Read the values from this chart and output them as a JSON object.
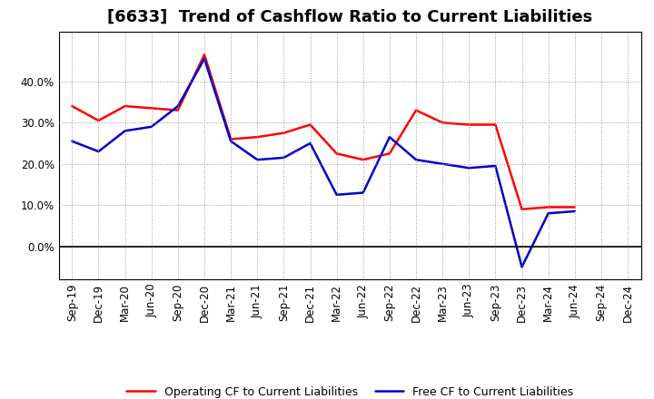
{
  "title": "[6633]  Trend of Cashflow Ratio to Current Liabilities",
  "x_labels": [
    "Sep-19",
    "Dec-19",
    "Mar-20",
    "Jun-20",
    "Sep-20",
    "Dec-20",
    "Mar-21",
    "Jun-21",
    "Sep-21",
    "Dec-21",
    "Mar-22",
    "Jun-22",
    "Sep-22",
    "Dec-22",
    "Mar-23",
    "Jun-23",
    "Sep-23",
    "Dec-23",
    "Mar-24",
    "Jun-24",
    "Sep-24",
    "Dec-24"
  ],
  "operating_cf": [
    34.0,
    30.5,
    34.0,
    33.5,
    33.0,
    46.5,
    26.0,
    26.5,
    27.5,
    29.5,
    22.5,
    21.0,
    22.5,
    33.0,
    30.0,
    29.5,
    29.5,
    9.0,
    9.5,
    9.5,
    null,
    null
  ],
  "free_cf": [
    25.5,
    23.0,
    28.0,
    29.0,
    34.0,
    45.5,
    25.5,
    21.0,
    21.5,
    25.0,
    12.5,
    13.0,
    26.5,
    21.0,
    20.0,
    19.0,
    19.5,
    -5.0,
    8.0,
    8.5,
    null,
    null
  ],
  "operating_color": "#ff0000",
  "free_color": "#0000cc",
  "ylim": [
    -8,
    52
  ],
  "yticks": [
    0.0,
    10.0,
    20.0,
    30.0,
    40.0
  ],
  "legend_labels": [
    "Operating CF to Current Liabilities",
    "Free CF to Current Liabilities"
  ],
  "background_color": "#ffffff",
  "plot_bg_color": "#ffffff",
  "grid_color": "#999999",
  "title_fontsize": 13,
  "axis_fontsize": 8.5
}
